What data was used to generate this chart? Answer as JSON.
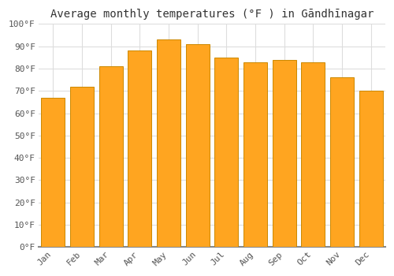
{
  "title": "Average monthly temperatures (°F ) in Gāndhīnagar",
  "months": [
    "Jan",
    "Feb",
    "Mar",
    "Apr",
    "May",
    "Jun",
    "Jul",
    "Aug",
    "Sep",
    "Oct",
    "Nov",
    "Dec"
  ],
  "values": [
    67,
    72,
    81,
    88,
    93,
    91,
    85,
    83,
    84,
    83,
    76,
    70
  ],
  "bar_color": "#FFA520",
  "bar_edge_color": "#CC8800",
  "background_color": "#ffffff",
  "plot_bg_color": "#ffffff",
  "ylim": [
    0,
    100
  ],
  "ytick_step": 10,
  "title_fontsize": 10,
  "tick_fontsize": 8,
  "grid_color": "#dddddd",
  "grid_alpha": 1.0,
  "bar_width": 0.82
}
